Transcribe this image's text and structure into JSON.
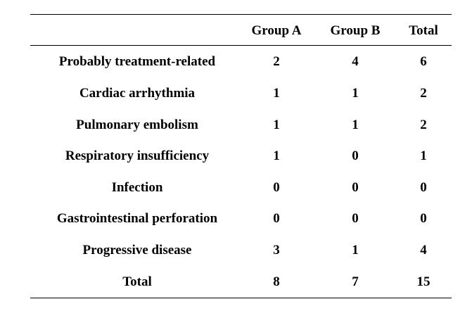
{
  "table": {
    "headers": [
      "",
      "Group A",
      "Group B",
      "Total"
    ],
    "rows": [
      [
        "Probably treatment-related",
        "2",
        "4",
        "6"
      ],
      [
        "Cardiac arrhythmia",
        "1",
        "1",
        "2"
      ],
      [
        "Pulmonary embolism",
        "1",
        "1",
        "2"
      ],
      [
        "Respiratory insufficiency",
        "1",
        "0",
        "1"
      ],
      [
        "Infection",
        "0",
        "0",
        "0"
      ],
      [
        "Gastrointestinal perforation",
        "0",
        "0",
        "0"
      ],
      [
        "Progressive disease",
        "3",
        "1",
        "4"
      ],
      [
        "Total",
        "8",
        "7",
        "15"
      ]
    ]
  }
}
